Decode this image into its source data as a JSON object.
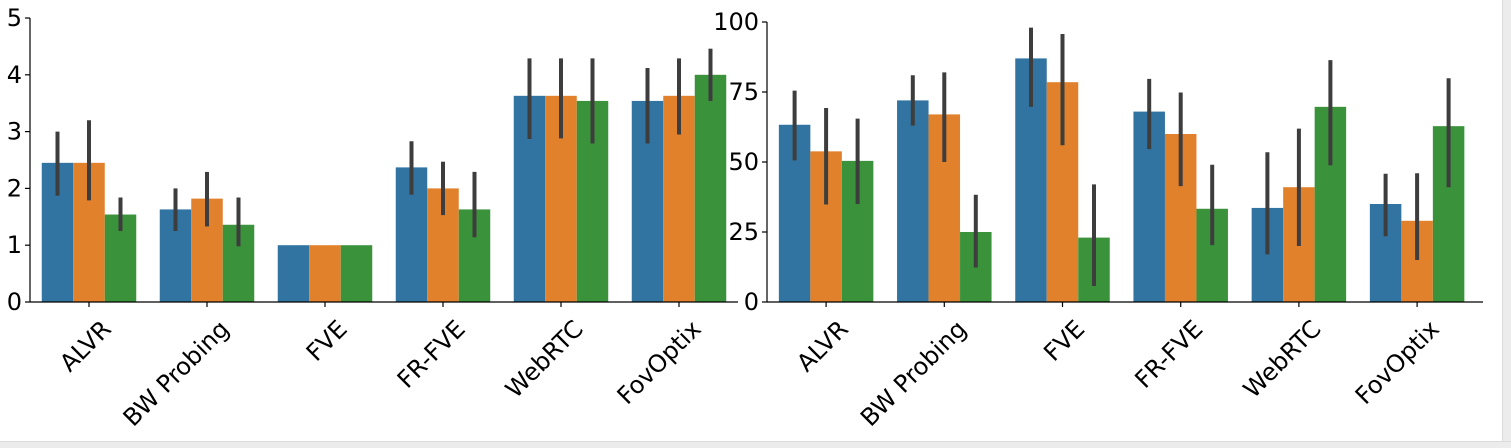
{
  "chart_data": [
    {
      "type": "bar",
      "categories": [
        "ALVR",
        "BW Probing",
        "FVE",
        "FR-FVE",
        "WebRTC",
        "FovOptix"
      ],
      "ylim": [
        0,
        5
      ],
      "yticks": [
        0,
        1,
        2,
        3,
        4,
        5
      ],
      "grid": false,
      "error_bars": true,
      "series": [
        {
          "color": "#3274a1",
          "values": [
            2.45,
            1.63,
            1.0,
            2.37,
            3.63,
            3.54
          ],
          "err_low": [
            1.87,
            1.25,
            1.0,
            1.89,
            2.87,
            2.79
          ],
          "err_high": [
            3.0,
            2.0,
            1.0,
            2.83,
            4.29,
            4.12
          ]
        },
        {
          "color": "#e1812c",
          "values": [
            2.45,
            1.82,
            1.0,
            2.0,
            3.63,
            3.63
          ],
          "err_low": [
            1.79,
            1.33,
            1.0,
            1.53,
            2.88,
            2.95
          ],
          "err_high": [
            3.2,
            2.29,
            1.0,
            2.47,
            4.29,
            4.29
          ]
        },
        {
          "color": "#3a923a",
          "values": [
            1.54,
            1.36,
            1.0,
            1.63,
            3.54,
            4.0
          ],
          "err_low": [
            1.25,
            0.98,
            1.0,
            1.14,
            2.79,
            3.54
          ],
          "err_high": [
            1.84,
            1.84,
            1.0,
            2.29,
            4.29,
            4.46
          ]
        }
      ]
    },
    {
      "type": "bar",
      "categories": [
        "ALVR",
        "BW Probing",
        "FVE",
        "FR-FVE",
        "WebRTC",
        "FovOptix"
      ],
      "ylim": [
        0,
        100
      ],
      "yticks": [
        0,
        25,
        50,
        75,
        100
      ],
      "grid": false,
      "error_bars": true,
      "series": [
        {
          "color": "#3274a1",
          "values": [
            63.3,
            72.0,
            87.0,
            68.0,
            33.6,
            35.0
          ],
          "err_low": [
            50.6,
            63.0,
            69.7,
            54.6,
            17.0,
            23.5
          ],
          "err_high": [
            75.5,
            81.0,
            98.0,
            79.7,
            53.5,
            45.8
          ]
        },
        {
          "color": "#e1812c",
          "values": [
            53.8,
            67.0,
            78.5,
            60.0,
            41.0,
            29.0
          ],
          "err_low": [
            34.8,
            50.0,
            56.0,
            41.4,
            20.0,
            15.0
          ],
          "err_high": [
            69.3,
            82.0,
            95.7,
            74.8,
            61.9,
            46.0
          ]
        },
        {
          "color": "#3a923a",
          "values": [
            50.4,
            25.0,
            23.0,
            33.3,
            69.7,
            62.8
          ],
          "err_low": [
            35.0,
            12.3,
            5.7,
            20.3,
            48.8,
            41.0
          ],
          "err_high": [
            65.5,
            38.3,
            42.0,
            49.0,
            86.4,
            79.9
          ]
        }
      ]
    }
  ]
}
